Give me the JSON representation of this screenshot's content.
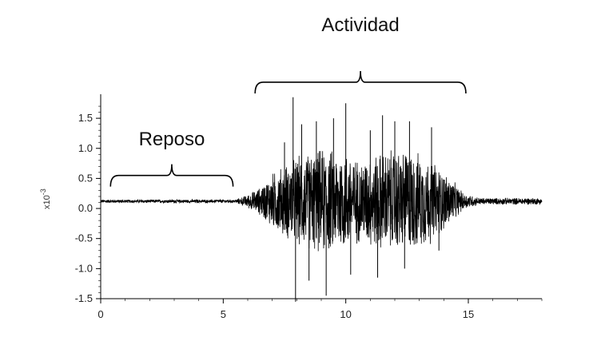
{
  "chart_data": {
    "type": "line",
    "title": "",
    "xlabel": "",
    "ylabel": "x10-3",
    "ylabel_base": "x10",
    "ylabel_exp": "-3",
    "xlim": [
      0,
      18
    ],
    "ylim": [
      -1.5,
      1.9
    ],
    "x_ticks": [
      0,
      5,
      10,
      15
    ],
    "x_tick_labels": [
      "0",
      "5",
      "10",
      "15"
    ],
    "y_ticks": [
      -1.5,
      -1.0,
      -0.5,
      0.0,
      0.5,
      1.0,
      1.5
    ],
    "y_tick_labels": [
      "-1.5",
      "-1.0",
      "-0.5",
      "0.0",
      "0.5",
      "1.0",
      "1.5"
    ],
    "grid": false,
    "line_color": "#000000",
    "baseline": 0.12,
    "envelope": [
      {
        "x": 0,
        "amp": 0.03
      },
      {
        "x": 5.5,
        "amp": 0.03
      },
      {
        "x": 6.0,
        "amp": 0.12
      },
      {
        "x": 6.5,
        "amp": 0.25
      },
      {
        "x": 7.0,
        "amp": 0.5
      },
      {
        "x": 8.0,
        "amp": 0.8
      },
      {
        "x": 9.0,
        "amp": 0.95
      },
      {
        "x": 10.0,
        "amp": 0.9
      },
      {
        "x": 10.5,
        "amp": 0.75
      },
      {
        "x": 11.5,
        "amp": 0.9
      },
      {
        "x": 12.5,
        "amp": 0.95
      },
      {
        "x": 13.5,
        "amp": 0.75
      },
      {
        "x": 14.2,
        "amp": 0.45
      },
      {
        "x": 14.8,
        "amp": 0.15
      },
      {
        "x": 15.5,
        "amp": 0.06
      },
      {
        "x": 18.0,
        "amp": 0.06
      }
    ],
    "spikes": [
      {
        "x": 7.5,
        "y": 1.1
      },
      {
        "x": 7.85,
        "y": 1.85
      },
      {
        "x": 7.95,
        "y": -1.55
      },
      {
        "x": 8.2,
        "y": 1.4
      },
      {
        "x": 8.5,
        "y": -1.2
      },
      {
        "x": 8.8,
        "y": 1.45
      },
      {
        "x": 9.2,
        "y": -1.45
      },
      {
        "x": 9.5,
        "y": 1.5
      },
      {
        "x": 10.0,
        "y": 1.75
      },
      {
        "x": 10.2,
        "y": -1.1
      },
      {
        "x": 11.0,
        "y": 1.3
      },
      {
        "x": 11.3,
        "y": -1.15
      },
      {
        "x": 11.5,
        "y": 1.55
      },
      {
        "x": 12.0,
        "y": 1.45
      },
      {
        "x": 12.4,
        "y": -1.0
      },
      {
        "x": 12.6,
        "y": 1.45
      },
      {
        "x": 13.5,
        "y": 1.35
      },
      {
        "x": 13.8,
        "y": -0.7
      }
    ],
    "annotations": [
      {
        "text": "Reposo",
        "x_start": 0.4,
        "x_end": 5.4,
        "y_bracket": 0.55,
        "y_text": 1.05
      },
      {
        "text": "Actividad",
        "x_start": 6.3,
        "x_end": 14.9,
        "y_bracket": 2.1,
        "y_text": 2.95
      }
    ]
  }
}
